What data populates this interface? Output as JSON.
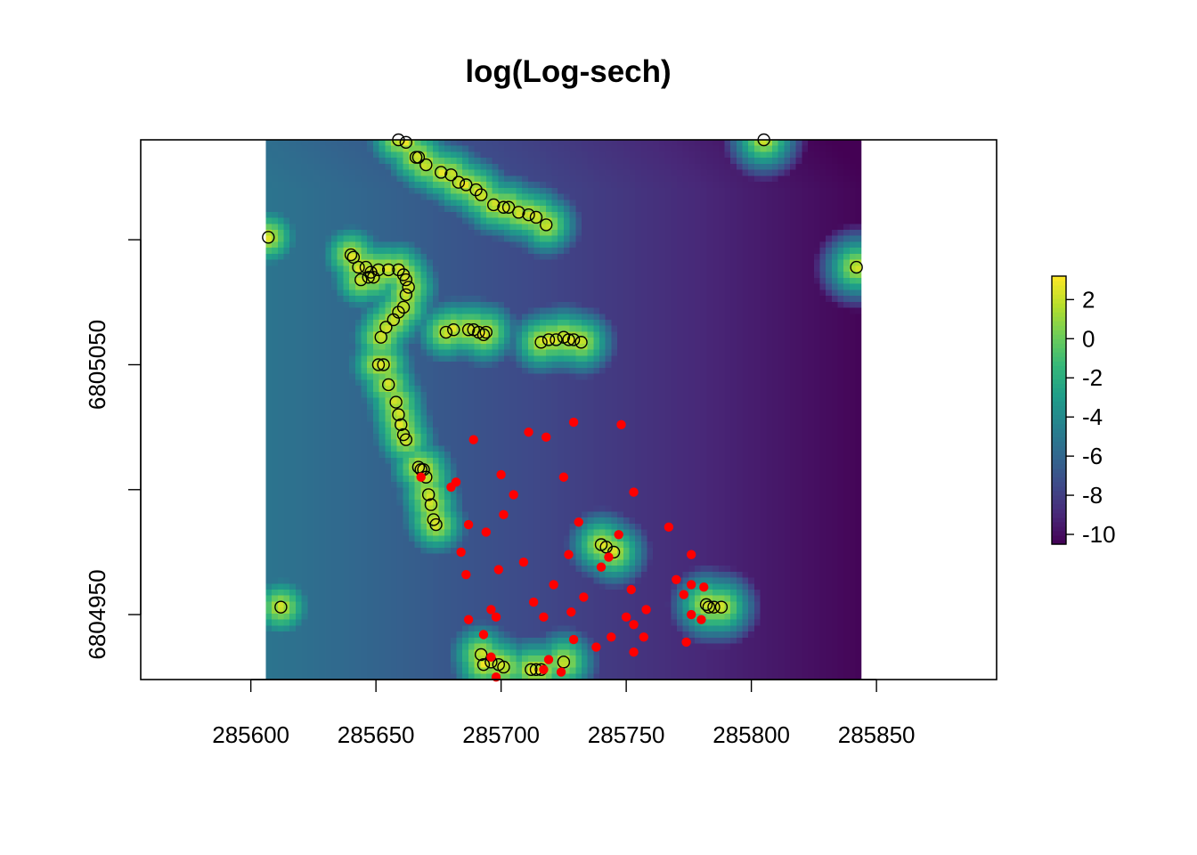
{
  "chart_data": {
    "type": "heatmap",
    "title": "log(Log-sech)",
    "xlabel": "",
    "ylabel": "",
    "xlim": [
      285556,
      285898
    ],
    "ylim": [
      6804924,
      6805140
    ],
    "raster_x_range": [
      285606,
      285844
    ],
    "raster_y_range": [
      6804924,
      6805140
    ],
    "x_ticks": [
      285600,
      285650,
      285700,
      285750,
      285800,
      285850
    ],
    "x_tick_labels": [
      "285600",
      "285650",
      "285700",
      "285750",
      "285800",
      "285850"
    ],
    "y_ticks": [
      6804950,
      6805000,
      6805050,
      6805100
    ],
    "y_tick_labels": [
      "6804950",
      "",
      "6805050",
      ""
    ],
    "colorbar": {
      "min": -10.5,
      "max": 3.2,
      "ticks": [
        2,
        0,
        -2,
        -4,
        -6,
        -8,
        -10
      ],
      "tick_labels": [
        "2",
        "0",
        "-2",
        "-4",
        "-6",
        "-8",
        "-10"
      ],
      "colormap": "viridis",
      "colors": [
        "#440154",
        "#482878",
        "#3E4A89",
        "#31688E",
        "#26828E",
        "#1F9E89",
        "#35B779",
        "#6DCD59",
        "#B4DE2C",
        "#FDE725"
      ]
    },
    "observed_points": {
      "name": "",
      "marker": "open-circle",
      "color": "#000000",
      "x": [
        285659,
        285662,
        285666,
        285667,
        285670,
        285676,
        285680,
        285683,
        285686,
        285690,
        285692,
        285697,
        285701,
        285703,
        285707,
        285711,
        285714,
        285718,
        285607,
        285640,
        285641,
        285643,
        285646,
        285648,
        285651,
        285655,
        285659,
        285661,
        285662,
        285663,
        285662,
        285661,
        285659,
        285657,
        285654,
        285652,
        285651,
        285653,
        285655,
        285658,
        285659,
        285660,
        285661,
        285662,
        285667,
        285668,
        285669,
        285670,
        285671,
        285672,
        285673,
        285674,
        285678,
        285681,
        285687,
        285689,
        285691,
        285693,
        285694,
        285716,
        285719,
        285722,
        285725,
        285727,
        285729,
        285732,
        285805,
        285842,
        285612,
        285740,
        285742,
        285745,
        285782,
        285783,
        285785,
        285788,
        285692,
        285693,
        285696,
        285699,
        285701,
        285712,
        285714,
        285716,
        285725,
        285644,
        285647,
        285649
      ],
      "y": [
        6805140,
        6805139,
        6805133,
        6805133,
        6805130,
        6805127,
        6805126,
        6805123,
        6805122,
        6805120,
        6805118,
        6805114,
        6805113,
        6805113,
        6805111,
        6805110,
        6805109,
        6805106,
        6805101,
        6805094,
        6805093,
        6805089,
        6805089,
        6805087,
        6805088,
        6805088,
        6805088,
        6805086,
        6805084,
        6805081,
        6805078,
        6805073,
        6805071,
        6805068,
        6805065,
        6805061,
        6805050,
        6805050,
        6805042,
        6805035,
        6805030,
        6805026,
        6805022,
        6805020,
        6805009,
        6805008,
        6805008,
        6805005,
        6804998,
        6804994,
        6804988,
        6804986,
        6805063,
        6805064,
        6805064,
        6805064,
        6805063,
        6805062,
        6805063,
        6805059,
        6805060,
        6805060,
        6805061,
        6805060,
        6805060,
        6805059,
        6805140,
        6805089,
        6804953,
        6804978,
        6804977,
        6804975,
        6804954,
        6804953,
        6804953,
        6804953,
        6804934,
        6804930,
        6804931,
        6804930,
        6804929,
        6804928,
        6804928,
        6804928,
        6804931,
        6805084,
        6805085,
        6805085
      ]
    },
    "predicted_points": {
      "name": "",
      "marker": "filled-dot",
      "color": "#FF0000",
      "x": [
        285689,
        285711,
        285718,
        285729,
        285748,
        285668,
        285680,
        285682,
        285700,
        285725,
        285705,
        285753,
        285701,
        285687,
        285694,
        285731,
        285747,
        285767,
        285684,
        285727,
        285743,
        285740,
        285709,
        285686,
        285699,
        285776,
        285721,
        285770,
        285776,
        285752,
        285773,
        285781,
        285733,
        285713,
        285758,
        285776,
        285687,
        285698,
        285717,
        285728,
        285750,
        285753,
        285696,
        285780,
        285693,
        285729,
        285744,
        285757,
        285774,
        285738,
        285753,
        285696,
        285719,
        285717,
        285724,
        285698
      ],
      "y": [
        6805020,
        6805023,
        6805021,
        6805027,
        6805026,
        6805005,
        6805001,
        6805003,
        6805006,
        6805005,
        6804998,
        6804999,
        6804990,
        6804986,
        6804983,
        6804987,
        6804982,
        6804985,
        6804975,
        6804974,
        6804973,
        6804969,
        6804971,
        6804966,
        6804968,
        6804974,
        6804962,
        6804964,
        6804962,
        6804960,
        6804958,
        6804961,
        6804957,
        6804955,
        6804952,
        6804950,
        6804948,
        6804949,
        6804949,
        6804951,
        6804949,
        6804946,
        6804952,
        6804948,
        6804942,
        6804940,
        6804941,
        6804941,
        6804939,
        6804937,
        6804935,
        6804933,
        6804932,
        6804928,
        6804927,
        6804925
      ]
    }
  }
}
